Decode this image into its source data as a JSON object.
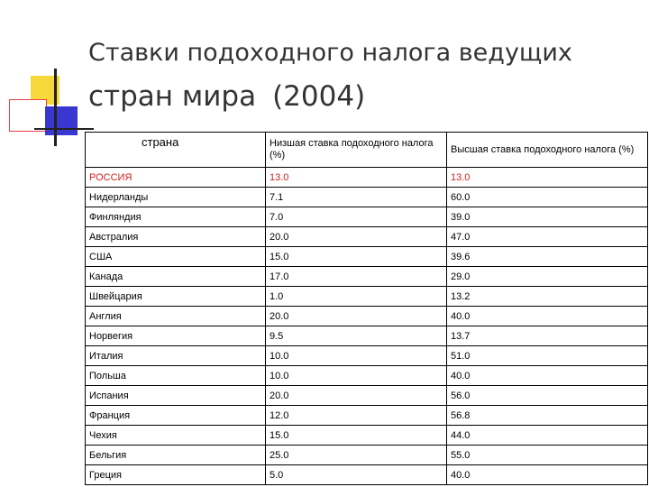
{
  "title": {
    "line1": "Ставки подоходного налога ведущих",
    "line2": "стран мира",
    "year": "(2004)"
  },
  "table": {
    "headers": [
      "страна",
      "Низшая ставка подоходного налога (%)",
      "Высшая ставка подоходного налога (%)"
    ],
    "rows": [
      {
        "country": "РОССИЯ",
        "low": "13.0",
        "high": "13.0",
        "highlight": true
      },
      {
        "country": "Нидерланды",
        "low": "7.1",
        "high": "60.0"
      },
      {
        "country": "Финляндия",
        "low": "7.0",
        "high": "39.0"
      },
      {
        "country": "Австралия",
        "low": "20.0",
        "high": "47.0"
      },
      {
        "country": "США",
        "low": "15.0",
        "high": "39.6"
      },
      {
        "country": "Канада",
        "low": "17.0",
        "high": "29.0"
      },
      {
        "country": "Швейцария",
        "low": "1.0",
        "high": "13.2"
      },
      {
        "country": "Англия",
        "low": "20.0",
        "high": "40.0"
      },
      {
        "country": "Норвегия",
        "low": "9.5",
        "high": "13.7"
      },
      {
        "country": "Италия",
        "low": "10.0",
        "high": "51.0"
      },
      {
        "country": "Польша",
        "low": "10.0",
        "high": "40.0"
      },
      {
        "country": "Испания",
        "low": "20.0",
        "high": "56.0"
      },
      {
        "country": "Франция",
        "low": "12.0",
        "high": "56.8"
      },
      {
        "country": "Чехия",
        "low": "15.0",
        "high": "44.0"
      },
      {
        "country": "Бельгия",
        "low": "25.0",
        "high": "55.0"
      },
      {
        "country": "Греция",
        "low": "5.0",
        "high": "40.0"
      }
    ]
  },
  "colors": {
    "highlight_text": "#d02020",
    "deco_yellow": "#f7d83a",
    "deco_red": "#e8404a",
    "deco_blue": "#3838d0"
  }
}
